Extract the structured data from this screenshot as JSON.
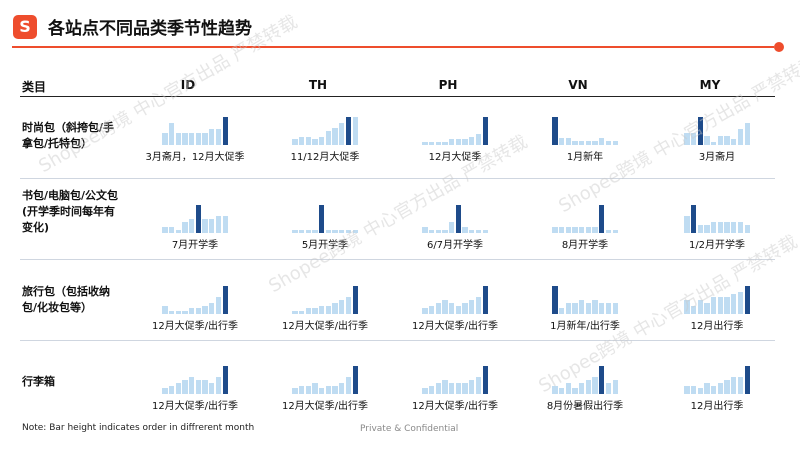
{
  "header": {
    "logo_letter": "S",
    "title": "各站点不同品类季节性趋势"
  },
  "columns": {
    "category": "类目",
    "markets": [
      "ID",
      "TH",
      "PH",
      "VN",
      "MY"
    ]
  },
  "rows": [
    {
      "label": "时尚包（斜挎包/手拿包/托特包）",
      "cells": [
        {
          "caption": "3月斋月，12月大促季",
          "values": [
            4,
            7,
            4,
            4,
            4,
            4,
            4,
            5,
            5,
            9
          ],
          "highlight": [
            9
          ]
        },
        {
          "caption": "11/12月大促季",
          "values": [
            2,
            3,
            3,
            2,
            3,
            5,
            6,
            8,
            10,
            10
          ],
          "highlight": [
            8
          ]
        },
        {
          "caption": "12月大促季",
          "values": [
            1,
            1,
            1,
            1,
            2,
            2,
            2,
            3,
            4,
            10
          ],
          "highlight": [
            9
          ]
        },
        {
          "caption": "1月新年",
          "values": [
            8,
            2,
            2,
            1,
            1,
            1,
            1,
            2,
            1,
            1
          ],
          "highlight": [
            0
          ]
        },
        {
          "caption": "3月斋月",
          "values": [
            4,
            4,
            9,
            3,
            1,
            3,
            3,
            2,
            5,
            7
          ],
          "highlight": [
            2
          ]
        }
      ]
    },
    {
      "label": "书包/电脑包/公文包 (开学季时间每年有变化)",
      "cells": [
        {
          "caption": "7月开学季",
          "values": [
            2,
            2,
            1,
            4,
            5,
            10,
            5,
            5,
            6,
            6
          ],
          "highlight": [
            5
          ]
        },
        {
          "caption": "5月开学季",
          "values": [
            1,
            1,
            1,
            1,
            9,
            1,
            1,
            1,
            1,
            1
          ],
          "highlight": [
            4
          ]
        },
        {
          "caption": "6/7月开学季",
          "values": [
            2,
            1,
            1,
            1,
            4,
            10,
            2,
            1,
            1,
            1
          ],
          "highlight": [
            5
          ]
        },
        {
          "caption": "8月开学季",
          "values": [
            2,
            2,
            2,
            2,
            2,
            2,
            2,
            10,
            1,
            1
          ],
          "highlight": [
            7
          ]
        },
        {
          "caption": "1/2月开学季",
          "values": [
            6,
            10,
            3,
            3,
            4,
            4,
            4,
            4,
            4,
            3
          ],
          "highlight": [
            1
          ]
        }
      ]
    },
    {
      "label": "旅行包（包括收纳包/化妆包等）",
      "cells": [
        {
          "caption": "12月大促季/出行季",
          "values": [
            3,
            1,
            1,
            1,
            2,
            2,
            3,
            4,
            6,
            10
          ],
          "highlight": [
            9
          ]
        },
        {
          "caption": "12月大促季/出行季",
          "values": [
            1,
            1,
            2,
            2,
            3,
            3,
            4,
            5,
            6,
            10
          ],
          "highlight": [
            9
          ]
        },
        {
          "caption": "12月大促季/出行季",
          "values": [
            2,
            3,
            4,
            5,
            4,
            3,
            4,
            5,
            6,
            10
          ],
          "highlight": [
            9
          ]
        },
        {
          "caption": "1月新年/出行季",
          "values": [
            10,
            2,
            4,
            4,
            5,
            4,
            5,
            4,
            4,
            4
          ],
          "highlight": [
            0
          ]
        },
        {
          "caption": "12月出行季",
          "values": [
            5,
            3,
            5,
            4,
            6,
            6,
            6,
            7,
            8,
            10
          ],
          "highlight": [
            9
          ]
        }
      ]
    },
    {
      "label": "行李箱",
      "cells": [
        {
          "caption": "12月大促季/出行季",
          "values": [
            2,
            3,
            4,
            5,
            6,
            5,
            5,
            4,
            6,
            10
          ],
          "highlight": [
            9
          ]
        },
        {
          "caption": "12月大促季/出行季",
          "values": [
            2,
            3,
            3,
            4,
            2,
            3,
            3,
            4,
            6,
            10
          ],
          "highlight": [
            9
          ]
        },
        {
          "caption": "12月大促季/出行季",
          "values": [
            2,
            3,
            4,
            5,
            4,
            4,
            4,
            5,
            6,
            10
          ],
          "highlight": [
            9
          ]
        },
        {
          "caption": "8月份暑假出行季",
          "values": [
            3,
            2,
            4,
            2,
            4,
            5,
            6,
            10,
            4,
            5
          ],
          "highlight": [
            7
          ]
        },
        {
          "caption": "12月出行季",
          "values": [
            3,
            3,
            2,
            4,
            3,
            4,
            5,
            6,
            6,
            10
          ],
          "highlight": [
            9
          ]
        }
      ]
    }
  ],
  "footer": {
    "note": "Note:  Bar height indicates order in diffrerent month",
    "confidential": "Private & Confidential"
  },
  "watermark": "Shopee跨境 中心官方出品 严禁转载",
  "colors": {
    "accent": "#ee4d2d",
    "bar": "#bfdcf2",
    "bar_highlight": "#1e4b8a"
  }
}
